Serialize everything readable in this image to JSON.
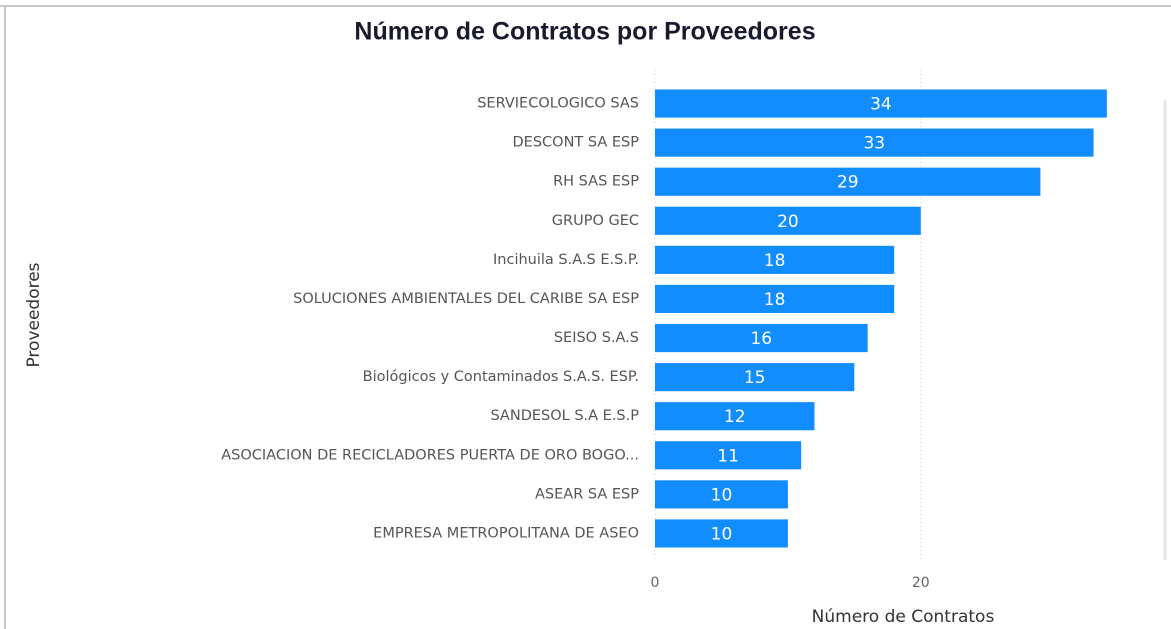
{
  "chart_data": {
    "type": "barh",
    "title": "Número de Contratos por Proveedores",
    "x_label": "Número de Contratos",
    "y_label": "Proveedores",
    "categories": [
      "SERVIECOLOGICO SAS",
      "DESCONT SA ESP",
      "RH SAS ESP",
      "GRUPO GEC",
      "Incihuila S.A.S E.S.P.",
      "SOLUCIONES AMBIENTALES DEL CARIBE SA ESP",
      "SEISO S.A.S",
      "Biológicos y Contaminados S.A.S. ESP.",
      "SANDESOL S.A E.S.P",
      "ASOCIACION DE RECICLADORES PUERTA DE ORO BOGO...",
      "ASEAR SA ESP",
      "EMPRESA METROPOLITANA DE ASEO"
    ],
    "values": [
      34,
      33,
      29,
      20,
      18,
      18,
      16,
      15,
      12,
      11,
      10,
      10
    ],
    "color": "#118dff",
    "xlim": [
      0,
      38
    ],
    "xticks": [
      0,
      20
    ],
    "grid": true
  }
}
